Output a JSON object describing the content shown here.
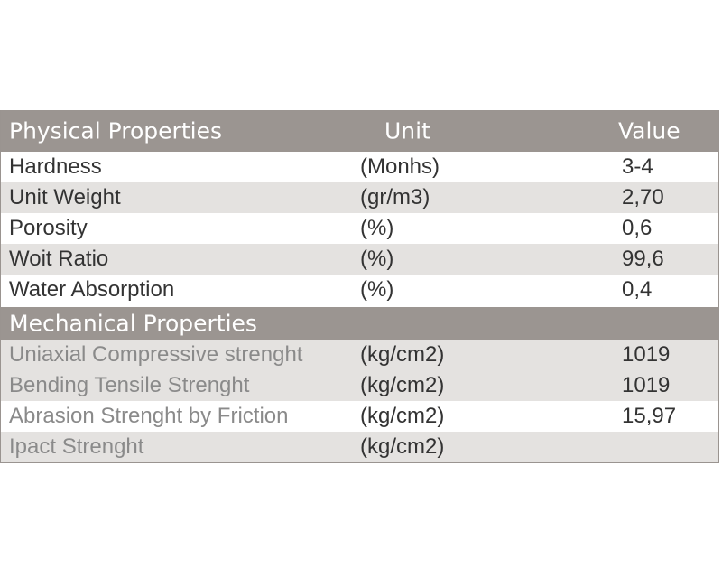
{
  "table": {
    "header": [
      "Physical Properties",
      "Unit",
      "Value"
    ],
    "rows": [
      [
        "Hardness",
        "(Monhs)",
        "3-4"
      ],
      [
        "Unit Weight",
        "(gr/m3)",
        "2,70"
      ],
      [
        "Porosity",
        "(%)",
        "0,6"
      ],
      [
        "Woit Ratio",
        "(%)",
        "99,6"
      ],
      [
        "Water Absorption",
        "(%)",
        "0,4"
      ]
    ],
    "section": "Mechanical Properties",
    "section_rows": [
      [
        "Uniaxial Compressive strenght",
        "(kg/cm2)",
        "1019"
      ],
      [
        "Bending Tensile Strenght",
        "(kg/cm2)",
        "1019"
      ],
      [
        "Abrasion Strenght by Friction",
        "(kg/cm2)",
        "15,97"
      ],
      [
        "Ipact Strenght",
        "(kg/cm2)"
      ]
    ]
  }
}
